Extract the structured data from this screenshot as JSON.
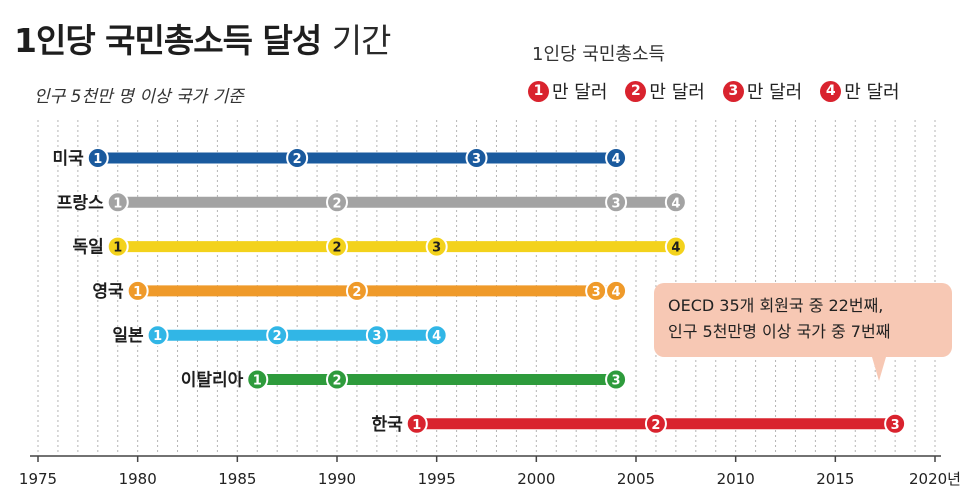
{
  "title": {
    "main": "1인당 국민총소득 달성",
    "rest": "기간"
  },
  "subtitle": "인구 5천만 명 이상 국가 기준",
  "legend": {
    "title": "1인당 국민총소득",
    "items": [
      {
        "num": "1",
        "label": "만 달러"
      },
      {
        "num": "2",
        "label": "만 달러"
      },
      {
        "num": "3",
        "label": "만 달러"
      },
      {
        "num": "4",
        "label": "만 달러"
      }
    ]
  },
  "callout": {
    "line1": "OECD 35개 회원국 중 22번째,",
    "line2": "인구 5천만명 이상 국가 중 7번째",
    "color": "#f7c8b4"
  },
  "colors": {
    "milestone": "#d9232e",
    "미국": "#1a5a9e",
    "프랑스": "#a3a3a3",
    "독일": "#f3d21c",
    "영국": "#ef9a2a",
    "일본": "#31b6e6",
    "이탈리아": "#2e9b3c",
    "한국": "#d9232e"
  },
  "chart_data": {
    "type": "timeline",
    "x_axis": {
      "min": 1975,
      "max": 2020,
      "ticks": [
        "1975",
        "1980",
        "1985",
        "1990",
        "1995",
        "2000",
        "2005",
        "2010",
        "2015",
        "2020년"
      ],
      "tick_values": [
        1975,
        1980,
        1985,
        1990,
        1995,
        2000,
        2005,
        2010,
        2015,
        2020
      ]
    },
    "grid": "vertical dotted lines each year",
    "series": [
      {
        "name": "미국",
        "milestones": [
          {
            "label": "1",
            "year": 1978
          },
          {
            "label": "2",
            "year": 1988
          },
          {
            "label": "3",
            "year": 1997
          },
          {
            "label": "4",
            "year": 2004
          }
        ]
      },
      {
        "name": "프랑스",
        "milestones": [
          {
            "label": "1",
            "year": 1979
          },
          {
            "label": "2",
            "year": 1990
          },
          {
            "label": "3",
            "year": 2004
          },
          {
            "label": "4",
            "year": 2007
          }
        ]
      },
      {
        "name": "독일",
        "milestones": [
          {
            "label": "1",
            "year": 1979
          },
          {
            "label": "2",
            "year": 1990
          },
          {
            "label": "3",
            "year": 1995
          },
          {
            "label": "4",
            "year": 2007
          }
        ]
      },
      {
        "name": "영국",
        "milestones": [
          {
            "label": "1",
            "year": 1980
          },
          {
            "label": "2",
            "year": 1991
          },
          {
            "label": "3",
            "year": 2003
          },
          {
            "label": "4",
            "year": 2004
          }
        ]
      },
      {
        "name": "일본",
        "milestones": [
          {
            "label": "1",
            "year": 1981
          },
          {
            "label": "2",
            "year": 1987
          },
          {
            "label": "3",
            "year": 1992
          },
          {
            "label": "4",
            "year": 1995
          }
        ]
      },
      {
        "name": "이탈리아",
        "milestones": [
          {
            "label": "1",
            "year": 1986
          },
          {
            "label": "2",
            "year": 1990
          },
          {
            "label": "3",
            "year": 2004
          }
        ]
      },
      {
        "name": "한국",
        "milestones": [
          {
            "label": "1",
            "year": 1994
          },
          {
            "label": "2",
            "year": 2006
          },
          {
            "label": "3",
            "year": 2018
          }
        ]
      }
    ]
  }
}
